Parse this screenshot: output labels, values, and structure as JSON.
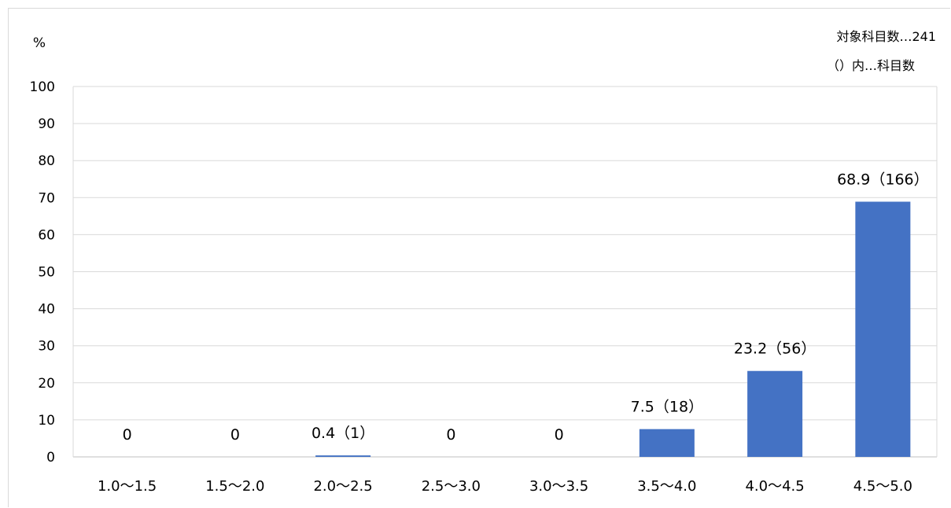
{
  "chart_data": {
    "type": "bar",
    "ylabel": "%",
    "ylim": [
      0,
      100
    ],
    "yticks": [
      0,
      10,
      20,
      30,
      40,
      50,
      60,
      70,
      80,
      90,
      100
    ],
    "categories": [
      "1.0～1.5",
      "1.5～2.0",
      "2.0～2.5",
      "2.5～3.0",
      "3.0～3.5",
      "3.5～4.0",
      "4.0～4.5",
      "4.5～5.0"
    ],
    "values": [
      0,
      0,
      0.4,
      0,
      0,
      7.5,
      23.2,
      68.9
    ],
    "data_labels": [
      "0",
      "0",
      "0.4（1）",
      "0",
      "0",
      "7.5（18）",
      "23.2（56）",
      "68.9（166）"
    ],
    "annotations": [
      "対象科目数…241",
      "（）内…科目数"
    ],
    "grid": true,
    "bar_color": "#4472c4"
  }
}
